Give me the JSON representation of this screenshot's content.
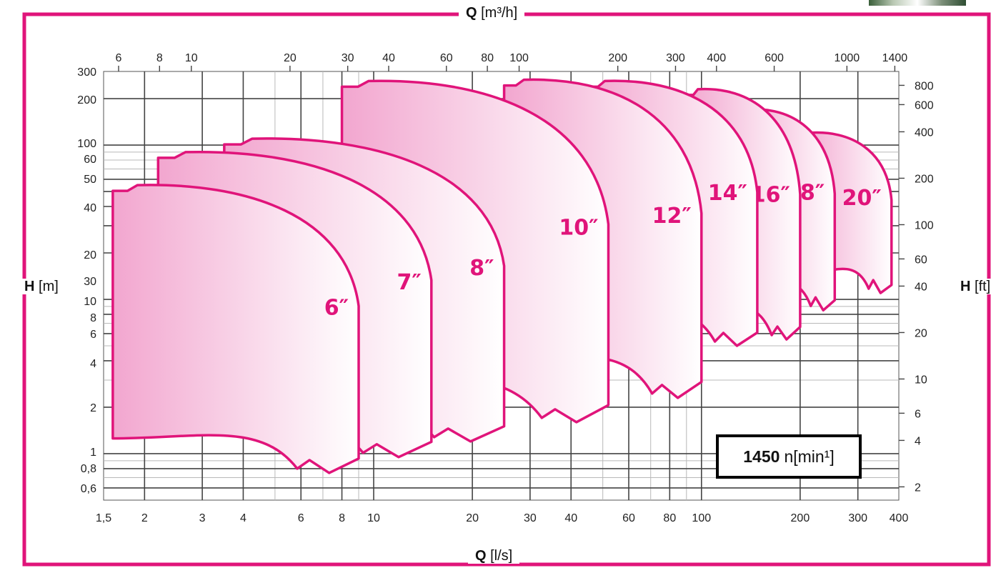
{
  "axes": {
    "q_top": {
      "symbol": "Q",
      "unit": "[m³/h]"
    },
    "q_bottom": {
      "symbol": "Q",
      "unit": "[l/s]"
    },
    "h_left": {
      "symbol": "H",
      "unit": "[m]"
    },
    "h_right": {
      "symbol": "H",
      "unit": "[ft]"
    }
  },
  "speed": {
    "value": "1450",
    "unit": "n[min¹]"
  },
  "colors": {
    "frame": "#e0147a",
    "curve": "#e0147a",
    "fill_strong": "#f2a6cf",
    "fill_light": "#ffffff",
    "grid": "#555555"
  },
  "chart_data": {
    "type": "area",
    "title": "",
    "x_scale": "log",
    "y_scale": "log",
    "xlim_ls": [
      1.5,
      400
    ],
    "ylim_m": [
      0.5,
      300
    ],
    "ticks": {
      "bottom_ls": [
        "1,5",
        "2",
        "3",
        "4",
        "6",
        "8",
        "10",
        "20",
        "30",
        "40",
        "60",
        "80",
        "100",
        "200",
        "300",
        "400"
      ],
      "top_m3h": [
        "6",
        "8",
        "10",
        "20",
        "30",
        "40",
        "60",
        "80",
        "100",
        "200",
        "300",
        "400",
        "600",
        "1000",
        "1400"
      ],
      "left_m": [
        "300",
        "200",
        "100",
        "60",
        "50",
        "40",
        "20",
        "30",
        "10",
        "8",
        "6",
        "4",
        "2",
        "1",
        "0,8",
        "0,6"
      ],
      "right_ft": [
        "800",
        "600",
        "400",
        "200",
        "100",
        "60",
        "40",
        "20",
        "10",
        "6",
        "4",
        "2"
      ]
    },
    "series": [
      {
        "name": "6″",
        "q_min_ls": 1.6,
        "q_max_ls": 9.0,
        "h_max_m": 55,
        "h_min_m": 0.75
      },
      {
        "name": "7″",
        "q_min_ls": 2.2,
        "q_max_ls": 15.0,
        "h_max_m": 90,
        "h_min_m": 0.95
      },
      {
        "name": "8″",
        "q_min_ls": 3.5,
        "q_max_ls": 25.0,
        "h_max_m": 110,
        "h_min_m": 1.2
      },
      {
        "name": "10″",
        "q_min_ls": 8.0,
        "q_max_ls": 52.0,
        "h_max_m": 260,
        "h_min_m": 1.6
      },
      {
        "name": "12″",
        "q_min_ls": 25.0,
        "q_max_ls": 100.0,
        "h_max_m": 265,
        "h_min_m": 2.3
      },
      {
        "name": "14″",
        "q_min_ls": 45.0,
        "q_max_ls": 148.0,
        "h_max_m": 260,
        "h_min_m": 5.0
      },
      {
        "name": "16″",
        "q_min_ls": 90.0,
        "q_max_ls": 200.0,
        "h_max_m": 230,
        "h_min_m": 5.5
      },
      {
        "name": "18″",
        "q_min_ls": 130.0,
        "q_max_ls": 255.0,
        "h_max_m": 170,
        "h_min_m": 8.5
      },
      {
        "name": "20″",
        "q_min_ls": 200.0,
        "q_max_ls": 380.0,
        "h_max_m": 120,
        "h_min_m": 11.0
      }
    ]
  }
}
